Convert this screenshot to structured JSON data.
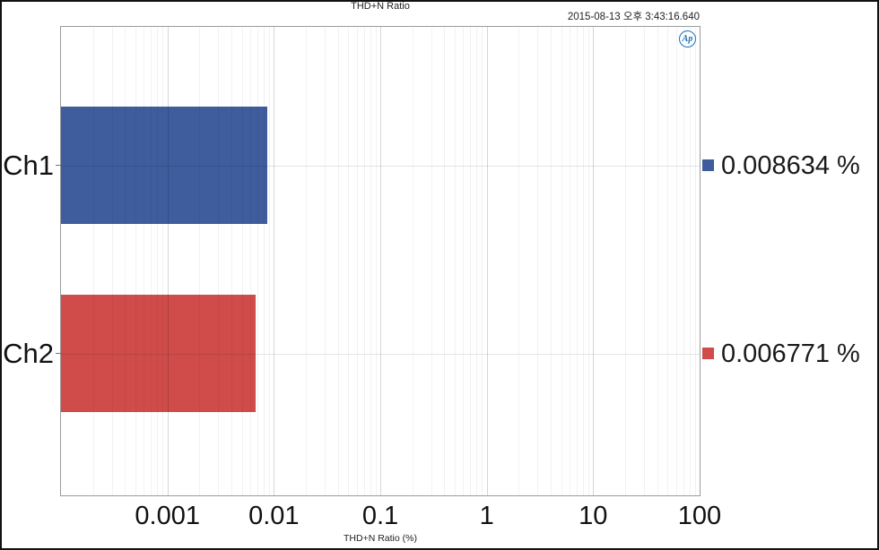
{
  "header": {
    "title": "THD+N Ratio",
    "timestamp": "2015-08-13 오후 3:43:16.640"
  },
  "logo": {
    "text": "Ap",
    "color": "#1a70b8"
  },
  "chart_data": {
    "type": "bar",
    "orientation": "horizontal",
    "x_scale": "log",
    "title": "THD+N Ratio",
    "xlabel": "THD+N Ratio (%)",
    "x_range": [
      0.0001,
      100
    ],
    "x_ticks": [
      "0.001",
      "0.01",
      "0.1",
      "1",
      "10",
      "100"
    ],
    "categories": [
      "Ch1",
      "Ch2"
    ],
    "values": [
      0.008634,
      0.006771
    ],
    "value_labels": [
      "0.008634 %",
      "0.006771 %"
    ],
    "colors": [
      "#3f5d9d",
      "#cf4c4b"
    ],
    "grid": true,
    "legend_position": "right"
  }
}
